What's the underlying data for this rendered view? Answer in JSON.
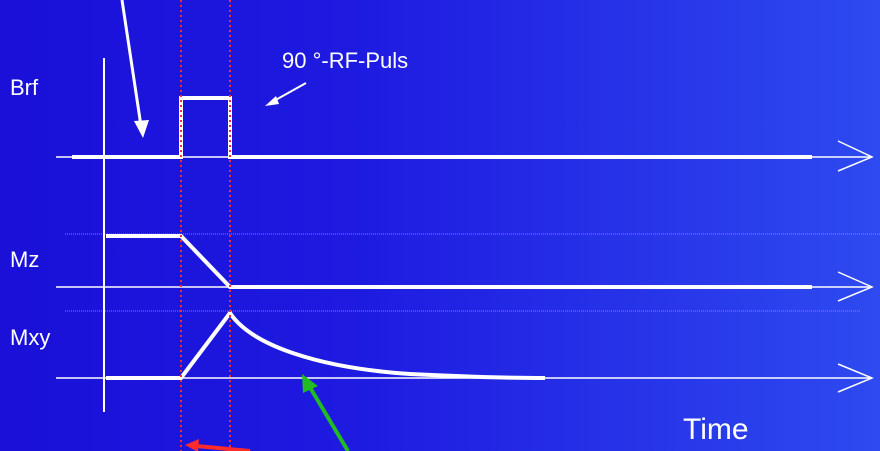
{
  "labels": {
    "brf": "Brf",
    "rf_pulse": "90 °-RF-Puls",
    "mz": "Mz",
    "mxy": "Mxy",
    "time": "Time"
  },
  "colors": {
    "background_start": "#1a10d8",
    "background_end": "#2e4af0",
    "line": "#ffffff",
    "marker_dotted": "#ff2a2a",
    "pointer_green": "#22bb22",
    "pointer_red": "#ff2a2a"
  }
}
